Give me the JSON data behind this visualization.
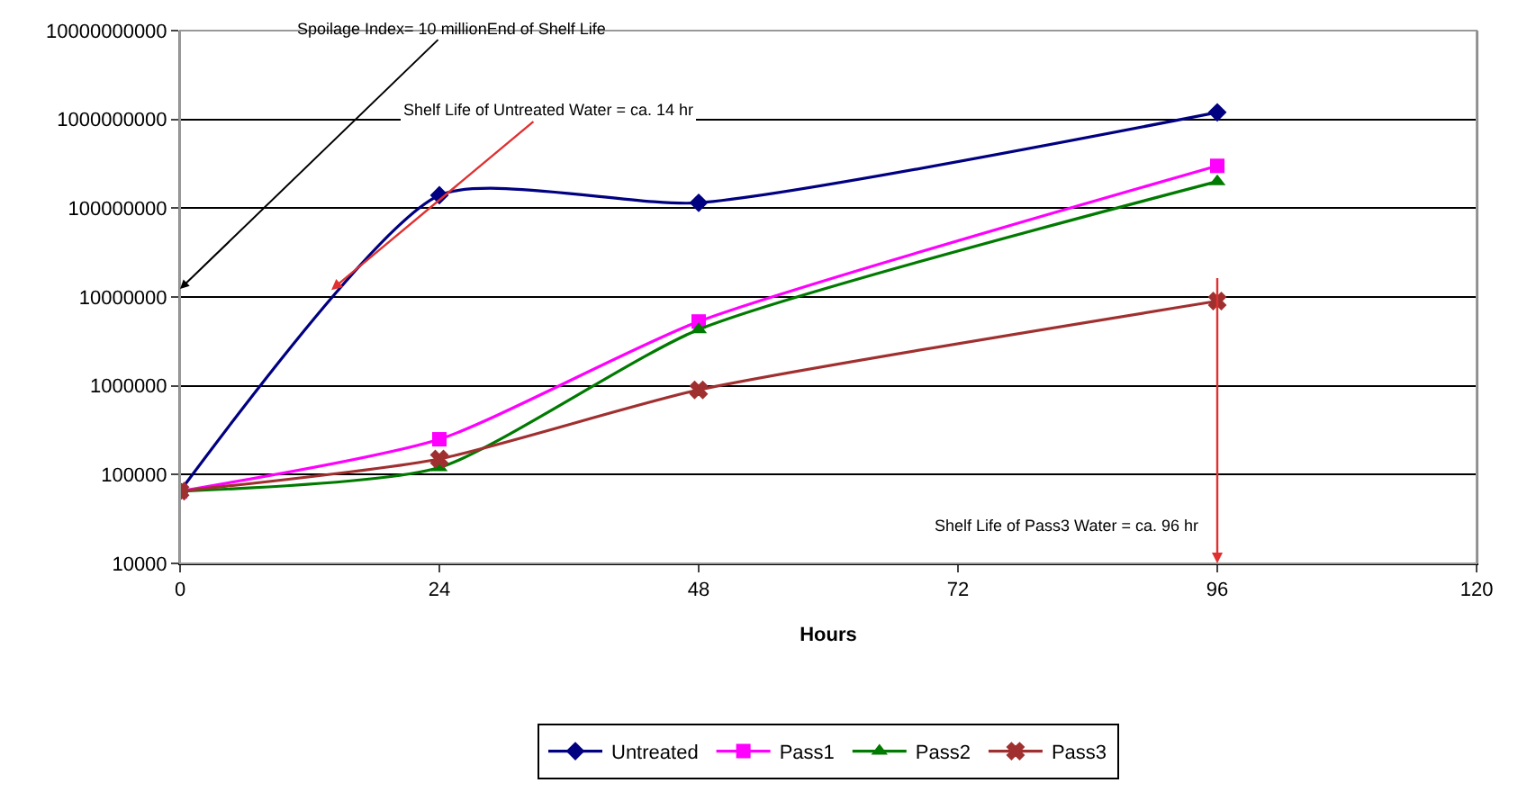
{
  "chart_data": {
    "type": "line",
    "xlabel": "Hours",
    "x": [
      0,
      24,
      48,
      96
    ],
    "series": [
      {
        "name": "Untreated",
        "color": "#000080",
        "marker": "diamond",
        "values": [
          65000,
          140000000,
          115000000,
          1200000000
        ]
      },
      {
        "name": "Pass1",
        "color": "#ff00ff",
        "marker": "square",
        "values": [
          65000,
          250000,
          5300000,
          300000000
        ]
      },
      {
        "name": "Pass2",
        "color": "#007a00",
        "marker": "triangle",
        "values": [
          65000,
          120000,
          4300000,
          200000000
        ]
      },
      {
        "name": "Pass3",
        "color": "#a03030",
        "marker": "cross",
        "values": [
          65000,
          150000,
          900000,
          9000000
        ]
      }
    ],
    "log": true,
    "xlim": [
      0,
      120
    ],
    "xticks": [
      0,
      24,
      48,
      72,
      96,
      120
    ],
    "ylim": [
      10000,
      10000000000
    ],
    "yticks": [
      10000,
      100000,
      1000000,
      10000000,
      100000000,
      1000000000,
      10000000000
    ],
    "grid": "y",
    "legend": "bottom",
    "annotations": [
      "Spoilage Index= 10 millionEnd of Shelf Life",
      {
        "text": "Shelf Life of Untreated Water = ca. 14 hr",
        "x": 14,
        "y": 12000000
      },
      "Shelf Life of Pass3 Water = ca. 96 hr"
    ]
  }
}
